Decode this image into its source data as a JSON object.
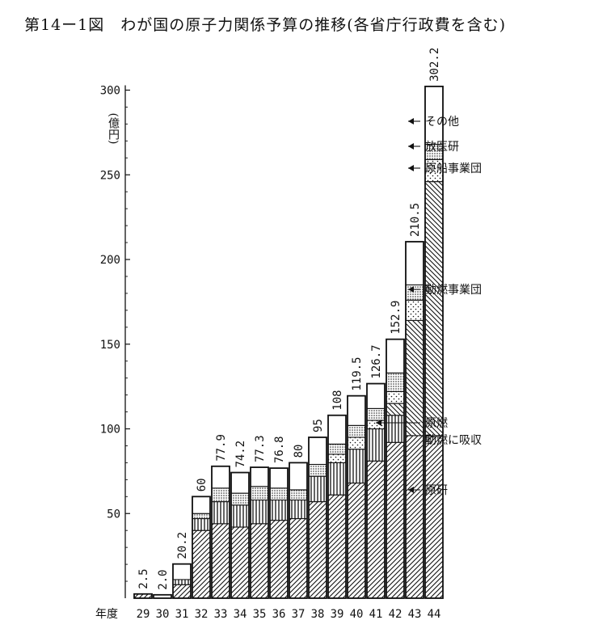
{
  "title": "第14ー1図　わが国の原子力関係予算の推移(各省庁行政費を含む)",
  "chart_data": {
    "type": "bar",
    "stacked": true,
    "ylabel": "(億円)",
    "xlabel": "年度",
    "ylim": [
      0,
      300
    ],
    "yticks": [
      50,
      100,
      150,
      200,
      250,
      300
    ],
    "categories": [
      "29",
      "30",
      "31",
      "32",
      "33",
      "34",
      "35",
      "36",
      "37",
      "38",
      "39",
      "40",
      "41",
      "42",
      "43",
      "44"
    ],
    "totals": [
      2.5,
      2.0,
      20.2,
      60,
      77.9,
      74.2,
      77.3,
      76.8,
      80,
      95,
      108,
      119.5,
      126.7,
      152.9,
      210.5,
      302.2
    ],
    "total_labels": [
      "2.5",
      "2.0",
      "20.2",
      "60",
      "77.9",
      "74.2",
      "77.3",
      "76.8",
      "80",
      "95",
      "108",
      "119.5",
      "126.7",
      "152.9",
      "210.5",
      "302.2"
    ],
    "series": [
      {
        "name": "原研",
        "pattern": "diag-right",
        "values": [
          2.5,
          0,
          8,
          40,
          44,
          42,
          44,
          46,
          47,
          57,
          61,
          68,
          81,
          92,
          96,
          96
        ]
      },
      {
        "name": "原燃 動燃に吸収",
        "pattern": "vertical",
        "values": [
          0,
          0,
          3,
          7,
          13,
          13,
          14,
          12,
          11,
          15,
          19,
          20,
          19,
          16,
          0,
          0
        ]
      },
      {
        "name": "動燃事業団",
        "pattern": "diag-left",
        "values": [
          0,
          0,
          0,
          0,
          0,
          0,
          0,
          0,
          0,
          0,
          0,
          0,
          0,
          7,
          68,
          150
        ]
      },
      {
        "name": "原船事業団",
        "pattern": "sparse-dots",
        "values": [
          0,
          0,
          0,
          0,
          0,
          0,
          0,
          0,
          0,
          0,
          5,
          7,
          5,
          7,
          12,
          13
        ]
      },
      {
        "name": "放医研",
        "pattern": "dense-dots",
        "values": [
          0,
          0,
          0,
          3,
          8,
          7,
          8,
          7,
          6,
          7,
          6,
          7,
          7,
          11,
          9,
          9
        ]
      },
      {
        "name": "その他",
        "pattern": "blank",
        "values": [
          0,
          2.0,
          9.2,
          10,
          12.9,
          12.2,
          11.3,
          11.8,
          16,
          16,
          17,
          17.5,
          14.7,
          19.9,
          25.5,
          34.2
        ]
      }
    ],
    "annotations": [
      "その他",
      "放医研",
      "原船事業団",
      "動燃事業団",
      "原燃",
      "動燃に吸収",
      "原研"
    ]
  }
}
